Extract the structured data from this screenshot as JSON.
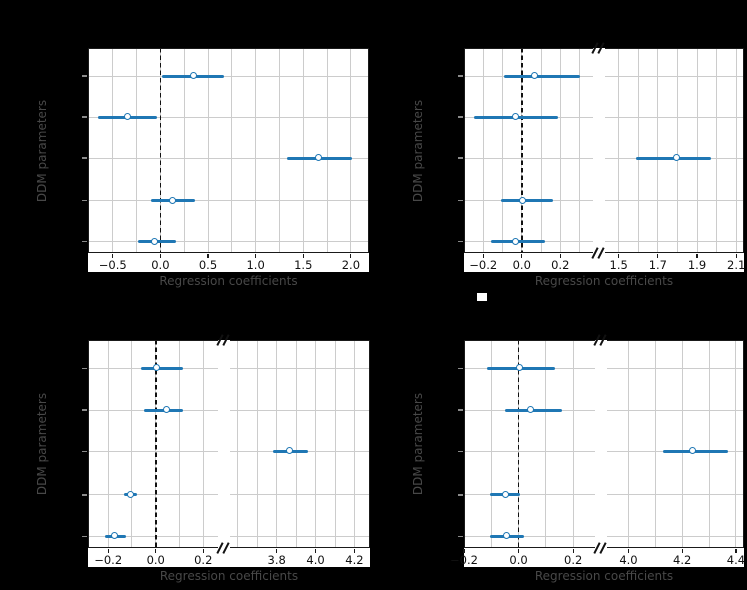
{
  "figure": {
    "colors": {
      "background": "#000000",
      "plot_bg": "#ffffff",
      "accent": "#1f77b4",
      "grid": "#cccccc",
      "spine": "#1a1a1a",
      "zero_line": "#111111",
      "tick_label": "#111111",
      "axis_label": "#484848",
      "y_tick": "#8a8a8a"
    }
  },
  "chart_data": [
    {
      "id": "top-left",
      "type": "scatter",
      "subtype": "horizontal-errorbar-forest",
      "xlabel": "Regression coefficients",
      "ylabel": "DDM parameters",
      "broken_axis": false,
      "zero_reference_line": 0.0,
      "n_rows": 5,
      "grid": true,
      "segments": [
        {
          "xlim": [
            -0.76,
            2.19
          ],
          "grid_step": 0.25,
          "ticks": [
            -0.5,
            0.0,
            0.5,
            1.0,
            1.5,
            2.0
          ],
          "tick_labels": [
            "−0.5",
            "0.0",
            "0.5",
            "1.0",
            "1.5",
            "2.0"
          ]
        }
      ],
      "points": [
        {
          "row": 1,
          "segment": 0,
          "mean": 0.36,
          "ci": [
            0.02,
            0.67
          ]
        },
        {
          "row": 2,
          "segment": 0,
          "mean": -0.34,
          "ci": [
            -0.65,
            -0.04
          ]
        },
        {
          "row": 3,
          "segment": 0,
          "mean": 1.67,
          "ci": [
            1.33,
            2.01
          ]
        },
        {
          "row": 4,
          "segment": 0,
          "mean": 0.13,
          "ci": [
            -0.1,
            0.36
          ]
        },
        {
          "row": 5,
          "segment": 0,
          "mean": -0.05,
          "ci": [
            -0.24,
            0.16
          ]
        }
      ]
    },
    {
      "id": "top-right",
      "type": "scatter",
      "subtype": "horizontal-errorbar-forest",
      "xlabel": "Regression coefficients",
      "ylabel": "DDM parameters",
      "broken_axis": true,
      "zero_reference_line": 0.0,
      "n_rows": 5,
      "grid": true,
      "segments": [
        {
          "xlim": [
            -0.3,
            0.37
          ],
          "grid_step": 0.1,
          "ticks": [
            -0.2,
            0.0,
            0.2
          ],
          "tick_labels": [
            "−0.2",
            "0.0",
            "0.2"
          ]
        },
        {
          "xlim": [
            1.43,
            2.14
          ],
          "grid_step": 0.1,
          "ticks": [
            1.5,
            1.7,
            1.9,
            2.1
          ],
          "tick_labels": [
            "1.5",
            "1.7",
            "1.9",
            "2.1"
          ]
        }
      ],
      "points": [
        {
          "row": 1,
          "segment": 0,
          "mean": 0.07,
          "ci": [
            -0.09,
            0.3
          ]
        },
        {
          "row": 2,
          "segment": 0,
          "mean": -0.03,
          "ci": [
            -0.25,
            0.19
          ]
        },
        {
          "row": 3,
          "segment": 1,
          "mean": 1.8,
          "ci": [
            1.59,
            1.97
          ]
        },
        {
          "row": 4,
          "segment": 0,
          "mean": 0.01,
          "ci": [
            -0.11,
            0.16
          ]
        },
        {
          "row": 5,
          "segment": 0,
          "mean": -0.03,
          "ci": [
            -0.16,
            0.12
          ]
        }
      ]
    },
    {
      "id": "bottom-left",
      "type": "scatter",
      "subtype": "horizontal-errorbar-forest",
      "xlabel": "Regression coefficients",
      "ylabel": "DDM parameters",
      "broken_axis": true,
      "zero_reference_line": 0.0,
      "n_rows": 5,
      "grid": true,
      "segments": [
        {
          "xlim": [
            -0.285,
            0.262
          ],
          "grid_step": 0.1,
          "ticks": [
            -0.2,
            0.0,
            0.2
          ],
          "tick_labels": [
            "−0.2",
            "0.0",
            "0.2"
          ]
        },
        {
          "xlim": [
            3.56,
            4.28
          ],
          "grid_step": 0.1,
          "ticks": [
            3.8,
            4.0,
            4.2
          ],
          "tick_labels": [
            "3.8",
            "4.0",
            "4.2"
          ]
        }
      ],
      "points": [
        {
          "row": 1,
          "segment": 0,
          "mean": 0.005,
          "ci": [
            -0.06,
            0.115
          ]
        },
        {
          "row": 2,
          "segment": 0,
          "mean": 0.05,
          "ci": [
            -0.05,
            0.115
          ]
        },
        {
          "row": 3,
          "segment": 1,
          "mean": 3.87,
          "ci": [
            3.78,
            3.96
          ]
        },
        {
          "row": 4,
          "segment": 0,
          "mean": -0.105,
          "ci": [
            -0.135,
            -0.08
          ]
        },
        {
          "row": 5,
          "segment": 0,
          "mean": -0.17,
          "ci": [
            -0.215,
            -0.125
          ]
        }
      ]
    },
    {
      "id": "bottom-right",
      "type": "scatter",
      "subtype": "horizontal-errorbar-forest",
      "xlabel": "Regression coefficients",
      "ylabel": "DDM parameters",
      "broken_axis": true,
      "zero_reference_line": 0.0,
      "n_rows": 5,
      "grid": true,
      "segments": [
        {
          "xlim": [
            -0.2,
            0.28
          ],
          "grid_step": 0.1,
          "ticks": [
            -0.2,
            0.0,
            0.2
          ],
          "tick_labels": [
            "−0.2",
            "0.0",
            "0.2"
          ]
        },
        {
          "xlim": [
            3.92,
            4.43
          ],
          "grid_step": 0.1,
          "ticks": [
            4.0,
            4.2,
            4.4
          ],
          "tick_labels": [
            "4.0",
            "4.2",
            "4.4"
          ]
        }
      ],
      "points": [
        {
          "row": 1,
          "segment": 0,
          "mean": 0.005,
          "ci": [
            -0.115,
            0.135
          ]
        },
        {
          "row": 2,
          "segment": 0,
          "mean": 0.045,
          "ci": [
            -0.05,
            0.16
          ]
        },
        {
          "row": 3,
          "segment": 1,
          "mean": 4.24,
          "ci": [
            4.13,
            4.37
          ]
        },
        {
          "row": 4,
          "segment": 0,
          "mean": -0.045,
          "ci": [
            -0.105,
            0.005
          ]
        },
        {
          "row": 5,
          "segment": 0,
          "mean": -0.04,
          "ci": [
            -0.105,
            0.02
          ]
        }
      ]
    }
  ]
}
